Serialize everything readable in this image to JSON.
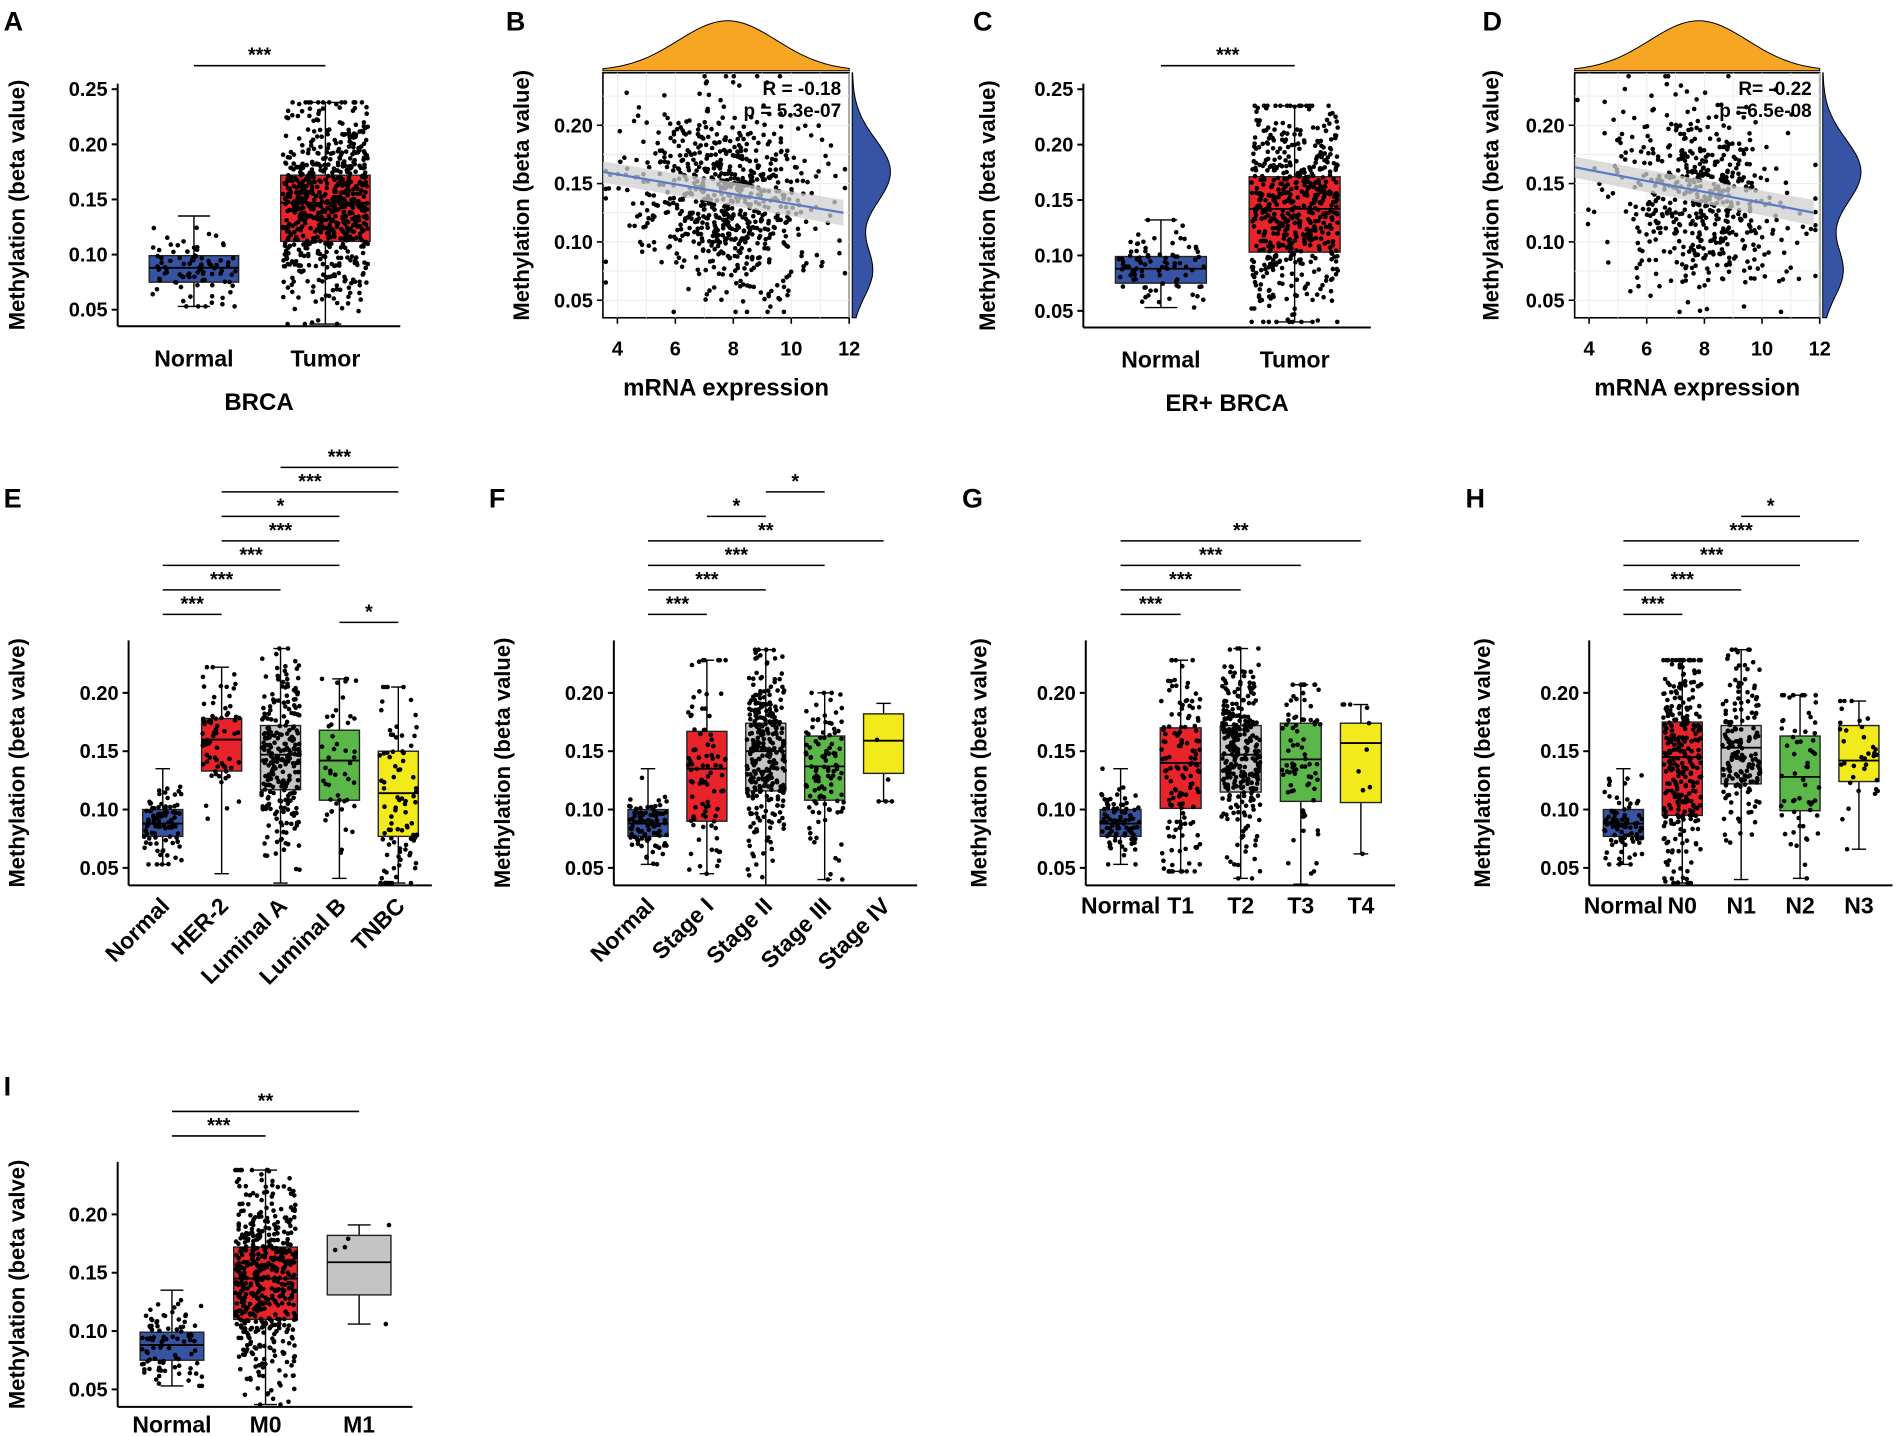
{
  "figure": {
    "panel_labels": [
      "A",
      "B",
      "C",
      "D",
      "E",
      "F",
      "G",
      "H",
      "I"
    ],
    "colors": {
      "blue": "#3653a4",
      "red": "#e8242a",
      "gray": "#c4c4c4",
      "green": "#5bb848",
      "yellow": "#f3ea1b",
      "orange": "#f6a622",
      "fit_line": "#5b7bc8",
      "ci_band": "#d0d0d0"
    }
  },
  "chart_data": [
    {
      "panel": "A",
      "type": "box",
      "ylabel": "Methylation (beta value)",
      "xlabel": "BRCA",
      "ylim": [
        0.035,
        0.255
      ],
      "yticks": [
        "0.05",
        "0.10",
        "0.15",
        "0.20",
        "0.25"
      ],
      "categories": [
        "Normal",
        "Tumor"
      ],
      "boxes": [
        {
          "name": "Normal",
          "color": "blue",
          "min": 0.053,
          "q1": 0.075,
          "median": 0.088,
          "q3": 0.099,
          "max": 0.135,
          "n": 90
        },
        {
          "name": "Tumor",
          "color": "red",
          "min": 0.037,
          "q1": 0.112,
          "median": 0.147,
          "q3": 0.172,
          "max": 0.238,
          "n": 700
        }
      ],
      "significance": [
        {
          "from": 0,
          "to": 1,
          "label": "***"
        }
      ]
    },
    {
      "panel": "B",
      "type": "scatter",
      "ylabel": "Methylation (beta value)",
      "xlabel": "mRNA expression",
      "xlim": [
        3.5,
        12.0
      ],
      "ylim": [
        0.035,
        0.245
      ],
      "xticks": [
        "4",
        "6",
        "8",
        "10",
        "12"
      ],
      "yticks": [
        "0.05",
        "0.10",
        "0.15",
        "0.20"
      ],
      "stats": [
        "R = -0.18",
        "p = 5.3e-07"
      ],
      "fit": {
        "x1": 3.5,
        "y1": 0.16,
        "x2": 11.8,
        "y2": 0.125
      },
      "n": 750,
      "x_center": 7.8,
      "y_center": 0.135,
      "top_density": "orange",
      "side_density": "blue"
    },
    {
      "panel": "C",
      "type": "box",
      "ylabel": "Methylation (beta value)",
      "xlabel": "ER+ BRCA",
      "ylim": [
        0.035,
        0.255
      ],
      "yticks": [
        "0.05",
        "0.10",
        "0.15",
        "0.20",
        "0.25"
      ],
      "categories": [
        "Normal",
        "Tumor"
      ],
      "boxes": [
        {
          "name": "Normal",
          "color": "blue",
          "min": 0.053,
          "q1": 0.075,
          "median": 0.088,
          "q3": 0.099,
          "max": 0.132,
          "n": 90
        },
        {
          "name": "Tumor",
          "color": "red",
          "min": 0.04,
          "q1": 0.103,
          "median": 0.142,
          "q3": 0.171,
          "max": 0.235,
          "n": 560
        }
      ],
      "significance": [
        {
          "from": 0,
          "to": 1,
          "label": "***"
        }
      ]
    },
    {
      "panel": "D",
      "type": "scatter",
      "ylabel": "Methylation (beta value)",
      "xlabel": "mRNA expression",
      "xlim": [
        3.5,
        12.0
      ],
      "ylim": [
        0.035,
        0.245
      ],
      "xticks": [
        "4",
        "6",
        "8",
        "10",
        "12"
      ],
      "yticks": [
        "0.05",
        "0.10",
        "0.15",
        "0.20"
      ],
      "stats": [
        "R= -0.22",
        "p =6.5e-08"
      ],
      "fit": {
        "x1": 3.5,
        "y1": 0.164,
        "x2": 11.8,
        "y2": 0.125
      },
      "n": 560,
      "x_center": 7.8,
      "y_center": 0.14,
      "top_density": "orange",
      "side_density": "blue"
    },
    {
      "panel": "E",
      "type": "box",
      "ylabel": "Methylation (beta valve)",
      "ylim": [
        0.035,
        0.245
      ],
      "yticks": [
        "0.05",
        "0.10",
        "0.15",
        "0.20"
      ],
      "categories": [
        "Normal",
        "HER-2",
        "Luminal A",
        "Luminal B",
        "TNBC"
      ],
      "rotate_labels": true,
      "boxes": [
        {
          "name": "Normal",
          "color": "blue",
          "min": 0.053,
          "q1": 0.077,
          "median": 0.088,
          "q3": 0.1,
          "max": 0.135,
          "n": 90
        },
        {
          "name": "HER-2",
          "color": "red",
          "min": 0.045,
          "q1": 0.133,
          "median": 0.16,
          "q3": 0.178,
          "max": 0.222,
          "n": 70
        },
        {
          "name": "Luminal A",
          "color": "gray",
          "min": 0.037,
          "q1": 0.117,
          "median": 0.147,
          "q3": 0.172,
          "max": 0.238,
          "n": 260
        },
        {
          "name": "Luminal B",
          "color": "green",
          "min": 0.041,
          "q1": 0.108,
          "median": 0.142,
          "q3": 0.168,
          "max": 0.212,
          "n": 50
        },
        {
          "name": "TNBC",
          "color": "yellow",
          "min": 0.037,
          "q1": 0.077,
          "median": 0.114,
          "q3": 0.15,
          "max": 0.205,
          "n": 90
        }
      ],
      "significance": [
        {
          "from": 3,
          "to": 4,
          "label": "*",
          "level": 0
        },
        {
          "from": 0,
          "to": 1,
          "label": "***",
          "level": 1
        },
        {
          "from": 0,
          "to": 2,
          "label": "***",
          "level": 2
        },
        {
          "from": 0,
          "to": 3,
          "label": "***",
          "level": 3
        },
        {
          "from": 1,
          "to": 3,
          "label": "***",
          "level": 4
        },
        {
          "from": 1,
          "to": 3,
          "label": "*",
          "level": 5
        },
        {
          "from": 1,
          "to": 4,
          "label": "***",
          "level": 6
        },
        {
          "from": 2,
          "to": 4,
          "label": "***",
          "level": 7
        }
      ]
    },
    {
      "panel": "F",
      "type": "box",
      "ylabel": "Methylation (beta value)",
      "ylim": [
        0.035,
        0.245
      ],
      "yticks": [
        "0.05",
        "0.10",
        "0.15",
        "0.20"
      ],
      "categories": [
        "Normal",
        "Stage I",
        "Stage II",
        "Stage III",
        "Stage IV"
      ],
      "rotate_labels": true,
      "boxes": [
        {
          "name": "Normal",
          "color": "blue",
          "min": 0.053,
          "q1": 0.077,
          "median": 0.088,
          "q3": 0.1,
          "max": 0.135,
          "n": 90
        },
        {
          "name": "Stage I",
          "color": "red",
          "min": 0.045,
          "q1": 0.09,
          "median": 0.135,
          "q3": 0.167,
          "max": 0.228,
          "n": 90
        },
        {
          "name": "Stage II",
          "color": "gray",
          "min": 0.035,
          "q1": 0.116,
          "median": 0.15,
          "q3": 0.174,
          "max": 0.237,
          "n": 300
        },
        {
          "name": "Stage III",
          "color": "green",
          "min": 0.04,
          "q1": 0.108,
          "median": 0.137,
          "q3": 0.163,
          "max": 0.2,
          "n": 110
        },
        {
          "name": "Stage IV",
          "color": "yellow",
          "min": 0.107,
          "q1": 0.131,
          "median": 0.159,
          "q3": 0.182,
          "max": 0.191,
          "n": 5
        }
      ],
      "significance": [
        {
          "from": 0,
          "to": 1,
          "label": "***",
          "level": 1
        },
        {
          "from": 0,
          "to": 2,
          "label": "***",
          "level": 2
        },
        {
          "from": 0,
          "to": 3,
          "label": "***",
          "level": 3
        },
        {
          "from": 0,
          "to": 4,
          "label": "**",
          "level": 4
        },
        {
          "from": 1,
          "to": 2,
          "label": "*",
          "level": 5
        },
        {
          "from": 2,
          "to": 3,
          "label": "*",
          "level": 6
        }
      ]
    },
    {
      "panel": "G",
      "type": "box",
      "ylabel": "Methylation (beta valve)",
      "ylim": [
        0.035,
        0.245
      ],
      "yticks": [
        "0.05",
        "0.10",
        "0.15",
        "0.20"
      ],
      "categories": [
        "Normal",
        "T1",
        "T2",
        "T3",
        "T4"
      ],
      "rotate_labels": false,
      "boxes": [
        {
          "name": "Normal",
          "color": "blue",
          "min": 0.053,
          "q1": 0.077,
          "median": 0.088,
          "q3": 0.1,
          "max": 0.135,
          "n": 90
        },
        {
          "name": "T1",
          "color": "red",
          "min": 0.047,
          "q1": 0.101,
          "median": 0.14,
          "q3": 0.17,
          "max": 0.228,
          "n": 140
        },
        {
          "name": "T2",
          "color": "gray",
          "min": 0.041,
          "q1": 0.115,
          "median": 0.147,
          "q3": 0.172,
          "max": 0.238,
          "n": 300
        },
        {
          "name": "T3",
          "color": "green",
          "min": 0.036,
          "q1": 0.107,
          "median": 0.143,
          "q3": 0.174,
          "max": 0.207,
          "n": 80
        },
        {
          "name": "T4",
          "color": "yellow",
          "min": 0.062,
          "q1": 0.106,
          "median": 0.157,
          "q3": 0.174,
          "max": 0.19,
          "n": 10
        }
      ],
      "significance": [
        {
          "from": 0,
          "to": 1,
          "label": "***",
          "level": 1
        },
        {
          "from": 0,
          "to": 2,
          "label": "***",
          "level": 2
        },
        {
          "from": 0,
          "to": 3,
          "label": "***",
          "level": 3
        },
        {
          "from": 0,
          "to": 4,
          "label": "**",
          "level": 4
        }
      ]
    },
    {
      "panel": "H",
      "type": "box",
      "ylabel": "Methylation (beta valve)",
      "ylim": [
        0.035,
        0.245
      ],
      "yticks": [
        "0.05",
        "0.10",
        "0.15",
        "0.20"
      ],
      "categories": [
        "Normal",
        "N0",
        "N1",
        "N2",
        "N3"
      ],
      "rotate_labels": false,
      "boxes": [
        {
          "name": "Normal",
          "color": "blue",
          "min": 0.053,
          "q1": 0.077,
          "median": 0.088,
          "q3": 0.1,
          "max": 0.135,
          "n": 90
        },
        {
          "name": "N0",
          "color": "red",
          "min": 0.037,
          "q1": 0.095,
          "median": 0.145,
          "q3": 0.175,
          "max": 0.228,
          "n": 300
        },
        {
          "name": "N1",
          "color": "gray",
          "min": 0.04,
          "q1": 0.122,
          "median": 0.153,
          "q3": 0.172,
          "max": 0.237,
          "n": 180
        },
        {
          "name": "N2",
          "color": "green",
          "min": 0.041,
          "q1": 0.099,
          "median": 0.128,
          "q3": 0.163,
          "max": 0.198,
          "n": 60
        },
        {
          "name": "N3",
          "color": "yellow",
          "min": 0.066,
          "q1": 0.124,
          "median": 0.142,
          "q3": 0.172,
          "max": 0.193,
          "n": 35
        }
      ],
      "significance": [
        {
          "from": 0,
          "to": 1,
          "label": "***",
          "level": 1
        },
        {
          "from": 0,
          "to": 2,
          "label": "***",
          "level": 2
        },
        {
          "from": 0,
          "to": 3,
          "label": "***",
          "level": 3
        },
        {
          "from": 0,
          "to": 4,
          "label": "***",
          "level": 4
        },
        {
          "from": 2,
          "to": 3,
          "label": "*",
          "level": 5
        }
      ]
    },
    {
      "panel": "I",
      "type": "box",
      "ylabel": "Methylation (beta valve)",
      "ylim": [
        0.035,
        0.245
      ],
      "yticks": [
        "0.05",
        "0.10",
        "0.15",
        "0.20"
      ],
      "categories": [
        "Normal",
        "M0",
        "M1"
      ],
      "rotate_labels": false,
      "boxes": [
        {
          "name": "Normal",
          "color": "blue",
          "min": 0.053,
          "q1": 0.075,
          "median": 0.088,
          "q3": 0.099,
          "max": 0.135,
          "n": 90
        },
        {
          "name": "M0",
          "color": "red",
          "min": 0.037,
          "q1": 0.11,
          "median": 0.145,
          "q3": 0.172,
          "max": 0.238,
          "n": 500
        },
        {
          "name": "M1",
          "color": "gray",
          "min": 0.106,
          "q1": 0.131,
          "median": 0.159,
          "q3": 0.182,
          "max": 0.191,
          "n": 5
        }
      ],
      "significance": [
        {
          "from": 0,
          "to": 1,
          "label": "***",
          "level": 1
        },
        {
          "from": 0,
          "to": 2,
          "label": "**",
          "level": 2
        }
      ]
    }
  ]
}
